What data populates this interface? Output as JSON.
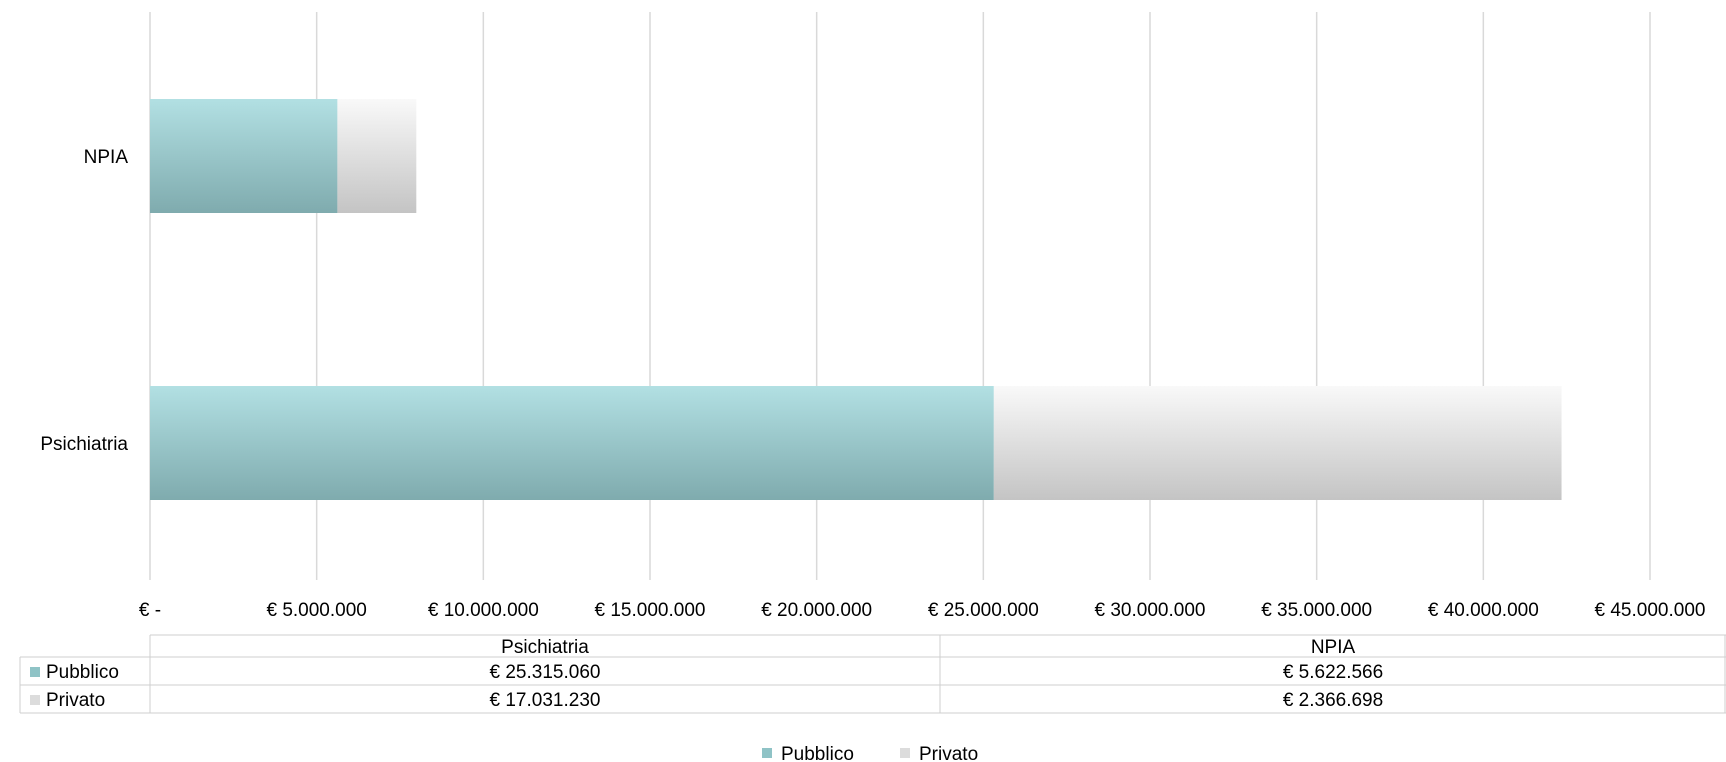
{
  "colors": {
    "pubblico": "#8fc3c6",
    "privato": "#dcdcdc",
    "grid": "#d9d9d9"
  },
  "chart_data": {
    "type": "bar",
    "orientation": "horizontal",
    "stacked": true,
    "categories": [
      "Psichiatria",
      "NPIA"
    ],
    "series": [
      {
        "name": "Pubblico",
        "values": [
          25315060,
          5622566
        ],
        "labels": [
          "€ 25.315.060",
          "€ 5.622.566"
        ]
      },
      {
        "name": "Privato",
        "values": [
          17031230,
          2366698
        ],
        "labels": [
          "€ 17.031.230",
          "€ 2.366.698"
        ]
      }
    ],
    "xlim": [
      0,
      45000000
    ],
    "x_ticks": [
      0,
      5000000,
      10000000,
      15000000,
      20000000,
      25000000,
      30000000,
      35000000,
      40000000,
      45000000
    ],
    "x_tick_labels": [
      "€ -",
      "€ 5.000.000",
      "€ 10.000.000",
      "€ 15.000.000",
      "€ 20.000.000",
      "€ 25.000.000",
      "€ 30.000.000",
      "€ 35.000.000",
      "€ 40.000.000",
      "€ 45.000.000"
    ],
    "grid": true,
    "legend": "bottom",
    "data_table": true,
    "title": "",
    "xlabel": "",
    "ylabel": ""
  }
}
